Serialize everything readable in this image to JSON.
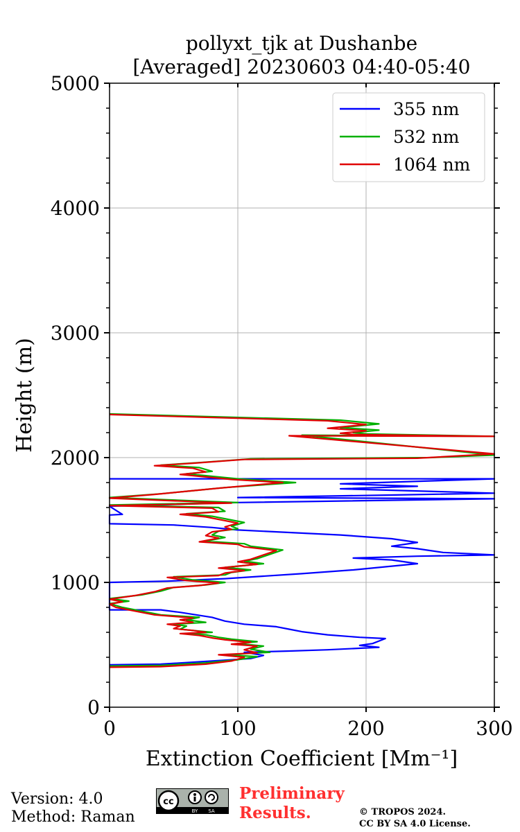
{
  "chart_data": {
    "type": "line",
    "title_line1": "pollyxt_tjk at Dushanbe",
    "title_line2": "[Averaged] 20230603 04:40-05:40",
    "xlabel": "Extinction Coefficient [Mm⁻¹]",
    "ylabel": "Height (m)",
    "xlim": [
      0,
      300
    ],
    "ylim": [
      0,
      5000
    ],
    "x_ticks": [
      0,
      100,
      200,
      300
    ],
    "y_ticks": [
      0,
      1000,
      2000,
      3000,
      4000,
      5000
    ],
    "grid": true,
    "legend_position": "top-right",
    "series": [
      {
        "name": "355 nm",
        "color": "#0000ff",
        "points": [
          [
            0,
            340
          ],
          [
            40,
            345
          ],
          [
            80,
            370
          ],
          [
            110,
            390
          ],
          [
            120,
            415
          ],
          [
            105,
            440
          ],
          [
            140,
            450
          ],
          [
            170,
            460
          ],
          [
            210,
            480
          ],
          [
            195,
            495
          ],
          [
            205,
            510
          ],
          [
            215,
            550
          ],
          [
            195,
            560
          ],
          [
            170,
            580
          ],
          [
            150,
            605
          ],
          [
            140,
            625
          ],
          [
            130,
            645
          ],
          [
            105,
            665
          ],
          [
            90,
            690
          ],
          [
            80,
            720
          ],
          [
            55,
            760
          ],
          [
            40,
            780
          ],
          [
            0,
            780
          ],
          [
            0,
            780
          ],
          [
            0,
            1000
          ],
          [
            45,
            1010
          ],
          [
            90,
            1030
          ],
          [
            120,
            1050
          ],
          [
            150,
            1070
          ],
          [
            190,
            1100
          ],
          [
            240,
            1150
          ],
          [
            220,
            1180
          ],
          [
            190,
            1195
          ],
          [
            240,
            1210
          ],
          [
            300,
            1220
          ],
          [
            260,
            1240
          ],
          [
            240,
            1270
          ],
          [
            220,
            1290
          ],
          [
            240,
            1320
          ],
          [
            220,
            1350
          ],
          [
            180,
            1380
          ],
          [
            140,
            1400
          ],
          [
            100,
            1420
          ],
          [
            80,
            1440
          ],
          [
            50,
            1460
          ],
          [
            0,
            1470
          ],
          [
            0,
            1540
          ],
          [
            10,
            1545
          ],
          [
            0,
            1610
          ],
          [
            100,
            1640
          ],
          [
            300,
            1670
          ],
          [
            100,
            1680
          ],
          [
            220,
            1700
          ],
          [
            300,
            1715
          ],
          [
            180,
            1750
          ],
          [
            240,
            1770
          ],
          [
            180,
            1790
          ],
          [
            300,
            1830
          ],
          [
            0,
            1830
          ]
        ]
      },
      {
        "name": "532 nm",
        "color": "#00b000",
        "points": [
          [
            0,
            330
          ],
          [
            40,
            335
          ],
          [
            75,
            355
          ],
          [
            100,
            380
          ],
          [
            115,
            405
          ],
          [
            90,
            420
          ],
          [
            125,
            440
          ],
          [
            110,
            465
          ],
          [
            120,
            490
          ],
          [
            100,
            510
          ],
          [
            115,
            525
          ],
          [
            95,
            545
          ],
          [
            85,
            560
          ],
          [
            75,
            580
          ],
          [
            60,
            590
          ],
          [
            80,
            600
          ],
          [
            70,
            610
          ],
          [
            55,
            625
          ],
          [
            60,
            650
          ],
          [
            50,
            665
          ],
          [
            75,
            680
          ],
          [
            60,
            700
          ],
          [
            70,
            720
          ],
          [
            40,
            740
          ],
          [
            25,
            770
          ],
          [
            10,
            800
          ],
          [
            0,
            830
          ],
          [
            15,
            850
          ],
          [
            0,
            870
          ],
          [
            25,
            900
          ],
          [
            40,
            930
          ],
          [
            50,
            960
          ],
          [
            75,
            980
          ],
          [
            90,
            1000
          ],
          [
            65,
            1020
          ],
          [
            50,
            1045
          ],
          [
            90,
            1060
          ],
          [
            95,
            1080
          ],
          [
            110,
            1100
          ],
          [
            90,
            1120
          ],
          [
            120,
            1150
          ],
          [
            105,
            1170
          ],
          [
            115,
            1190
          ],
          [
            135,
            1260
          ],
          [
            110,
            1290
          ],
          [
            105,
            1310
          ],
          [
            75,
            1330
          ],
          [
            90,
            1360
          ],
          [
            80,
            1380
          ],
          [
            85,
            1410
          ],
          [
            100,
            1430
          ],
          [
            95,
            1450
          ],
          [
            105,
            1480
          ],
          [
            95,
            1500
          ],
          [
            80,
            1530
          ],
          [
            60,
            1550
          ],
          [
            90,
            1570
          ],
          [
            85,
            1600
          ],
          [
            0,
            1620
          ],
          [
            100,
            1640
          ],
          [
            0,
            1680
          ],
          [
            40,
            1710
          ],
          [
            60,
            1730
          ],
          [
            90,
            1760
          ],
          [
            145,
            1800
          ],
          [
            100,
            1830
          ],
          [
            80,
            1850
          ],
          [
            60,
            1870
          ],
          [
            80,
            1890
          ],
          [
            70,
            1920
          ],
          [
            40,
            1940
          ],
          [
            70,
            1960
          ],
          [
            110,
            1990
          ],
          [
            250,
            2000
          ],
          [
            300,
            2020
          ],
          [
            150,
            2180
          ],
          [
            300,
            2170
          ],
          [
            200,
            2190
          ],
          [
            190,
            2200
          ],
          [
            210,
            2220
          ],
          [
            180,
            2240
          ],
          [
            210,
            2270
          ],
          [
            180,
            2300
          ],
          [
            0,
            2350
          ]
        ]
      },
      {
        "name": "1064 nm",
        "color": "#e00000",
        "points": [
          [
            0,
            320
          ],
          [
            40,
            325
          ],
          [
            75,
            345
          ],
          [
            95,
            370
          ],
          [
            105,
            400
          ],
          [
            85,
            420
          ],
          [
            115,
            435
          ],
          [
            105,
            460
          ],
          [
            115,
            490
          ],
          [
            95,
            505
          ],
          [
            110,
            520
          ],
          [
            90,
            540
          ],
          [
            80,
            555
          ],
          [
            70,
            575
          ],
          [
            55,
            590
          ],
          [
            75,
            600
          ],
          [
            65,
            615
          ],
          [
            50,
            630
          ],
          [
            55,
            650
          ],
          [
            45,
            665
          ],
          [
            65,
            680
          ],
          [
            55,
            700
          ],
          [
            65,
            715
          ],
          [
            35,
            740
          ],
          [
            20,
            770
          ],
          [
            5,
            800
          ],
          [
            0,
            825
          ],
          [
            10,
            845
          ],
          [
            0,
            865
          ],
          [
            20,
            895
          ],
          [
            35,
            925
          ],
          [
            45,
            955
          ],
          [
            70,
            975
          ],
          [
            85,
            995
          ],
          [
            60,
            1015
          ],
          [
            45,
            1040
          ],
          [
            85,
            1055
          ],
          [
            90,
            1075
          ],
          [
            105,
            1095
          ],
          [
            85,
            1115
          ],
          [
            115,
            1145
          ],
          [
            100,
            1165
          ],
          [
            110,
            1185
          ],
          [
            130,
            1255
          ],
          [
            105,
            1285
          ],
          [
            100,
            1305
          ],
          [
            70,
            1325
          ],
          [
            85,
            1355
          ],
          [
            75,
            1375
          ],
          [
            80,
            1405
          ],
          [
            95,
            1425
          ],
          [
            90,
            1445
          ],
          [
            100,
            1475
          ],
          [
            90,
            1495
          ],
          [
            75,
            1525
          ],
          [
            55,
            1545
          ],
          [
            85,
            1565
          ],
          [
            80,
            1595
          ],
          [
            0,
            1615
          ],
          [
            95,
            1635
          ],
          [
            0,
            1675
          ],
          [
            35,
            1705
          ],
          [
            55,
            1725
          ],
          [
            85,
            1755
          ],
          [
            135,
            1800
          ],
          [
            95,
            1825
          ],
          [
            75,
            1845
          ],
          [
            55,
            1865
          ],
          [
            75,
            1885
          ],
          [
            65,
            1915
          ],
          [
            35,
            1935
          ],
          [
            65,
            1955
          ],
          [
            105,
            1985
          ],
          [
            240,
            1995
          ],
          [
            300,
            2030
          ],
          [
            140,
            2175
          ],
          [
            300,
            2170
          ],
          [
            190,
            2185
          ],
          [
            180,
            2195
          ],
          [
            200,
            2215
          ],
          [
            170,
            2235
          ],
          [
            200,
            2265
          ],
          [
            170,
            2295
          ],
          [
            0,
            2345
          ]
        ]
      }
    ]
  },
  "footer": {
    "version": "Version: 4.0",
    "method": "Method: Raman",
    "preliminary_line1": "Preliminary",
    "preliminary_line2": "Results.",
    "copyright_line1": "© TROPOS 2024.",
    "copyright_line2": "CC BY SA 4.0 License.",
    "license_badge": "cc-by-sa-icon"
  }
}
